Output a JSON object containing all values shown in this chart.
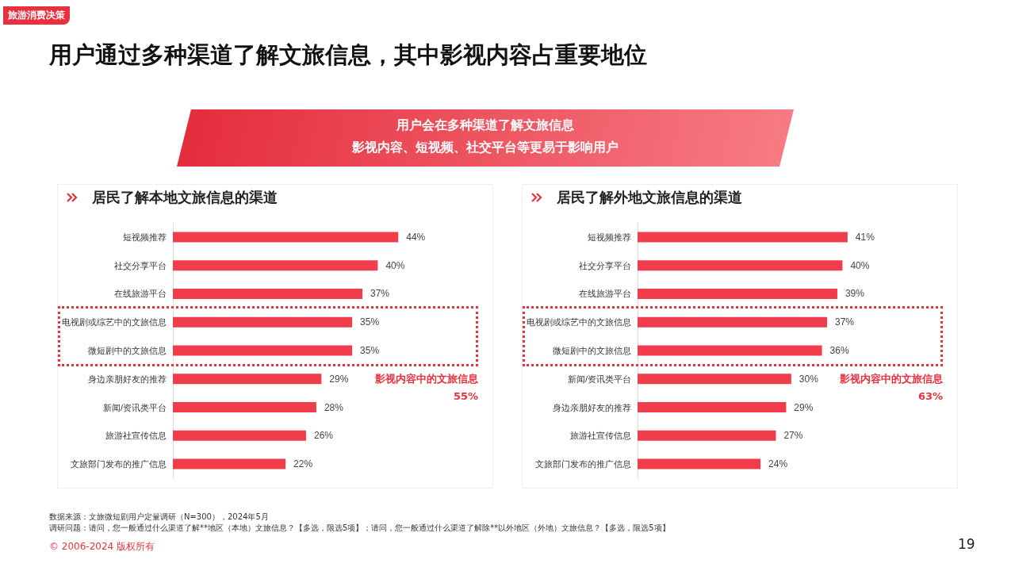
{
  "chart_data": [
    {
      "type": "other",
      "title": "用户通过多种渠道了解文旅信息，其中影视内容占重要地位",
      "subtitle": "用户会在多种渠道了解文旅信息",
      "annotations": [
        "旅游消费决策",
        "数据来源：文旅微短剧用户定量调研（N=300），2024年5月",
        "调研问题：请问，您一般通过什么渠道了解**地区（本地）文旅信息？【多选，限选5项】；请问，您一般通过什么渠道了解除**以外地区（外地）文旅信息？【多选，限选5项】",
        "© 2006-2024 版权所有",
        "19",
        "影视内容、短视频、社交平台等更易于影响用户"
      ]
    },
    {
      "type": "bar",
      "orientation": "horizontal",
      "title": "居民了解本地文旅信息的渠道",
      "categories": [
        "短视频推荐",
        "社交分享平台",
        "在线旅游平台",
        "电视剧或综艺中的文旅信息",
        "微短剧中的文旅信息",
        "身边亲朋好友的推荐",
        "新闻/资讯类平台",
        "旅游社宣传信息",
        "文旅部门发布的推广信息"
      ],
      "values": [
        44,
        40,
        37,
        35,
        35,
        29,
        28,
        26,
        22
      ],
      "value_labels": [
        "44%",
        "40%",
        "37%",
        "35%",
        "35%",
        "29%",
        "28%",
        "26%",
        "22%"
      ],
      "color": "#f03c4b",
      "annotations": [
        "影视内容中的文旅信息",
        "55%"
      ]
    },
    {
      "type": "bar",
      "orientation": "horizontal",
      "title": "居民了解外地文旅信息的渠道",
      "categories": [
        "短视频推荐",
        "社交分享平台",
        "在线旅游平台",
        "电视剧或综艺中的文旅信息",
        "微短剧中的文旅信息",
        "新闻/资讯类平台",
        "身边亲朋好友的推荐",
        "旅游社宣传信息",
        "文旅部门发布的推广信息"
      ],
      "values": [
        41,
        40,
        39,
        37,
        36,
        30,
        29,
        27,
        24
      ],
      "value_labels": [
        "41%",
        "40%",
        "39%",
        "37%",
        "36%",
        "30%",
        "29%",
        "27%",
        "24%"
      ],
      "color": "#f03c4b",
      "annotations": [
        "影视内容中的文旅信息",
        "63%"
      ]
    }
  ]
}
